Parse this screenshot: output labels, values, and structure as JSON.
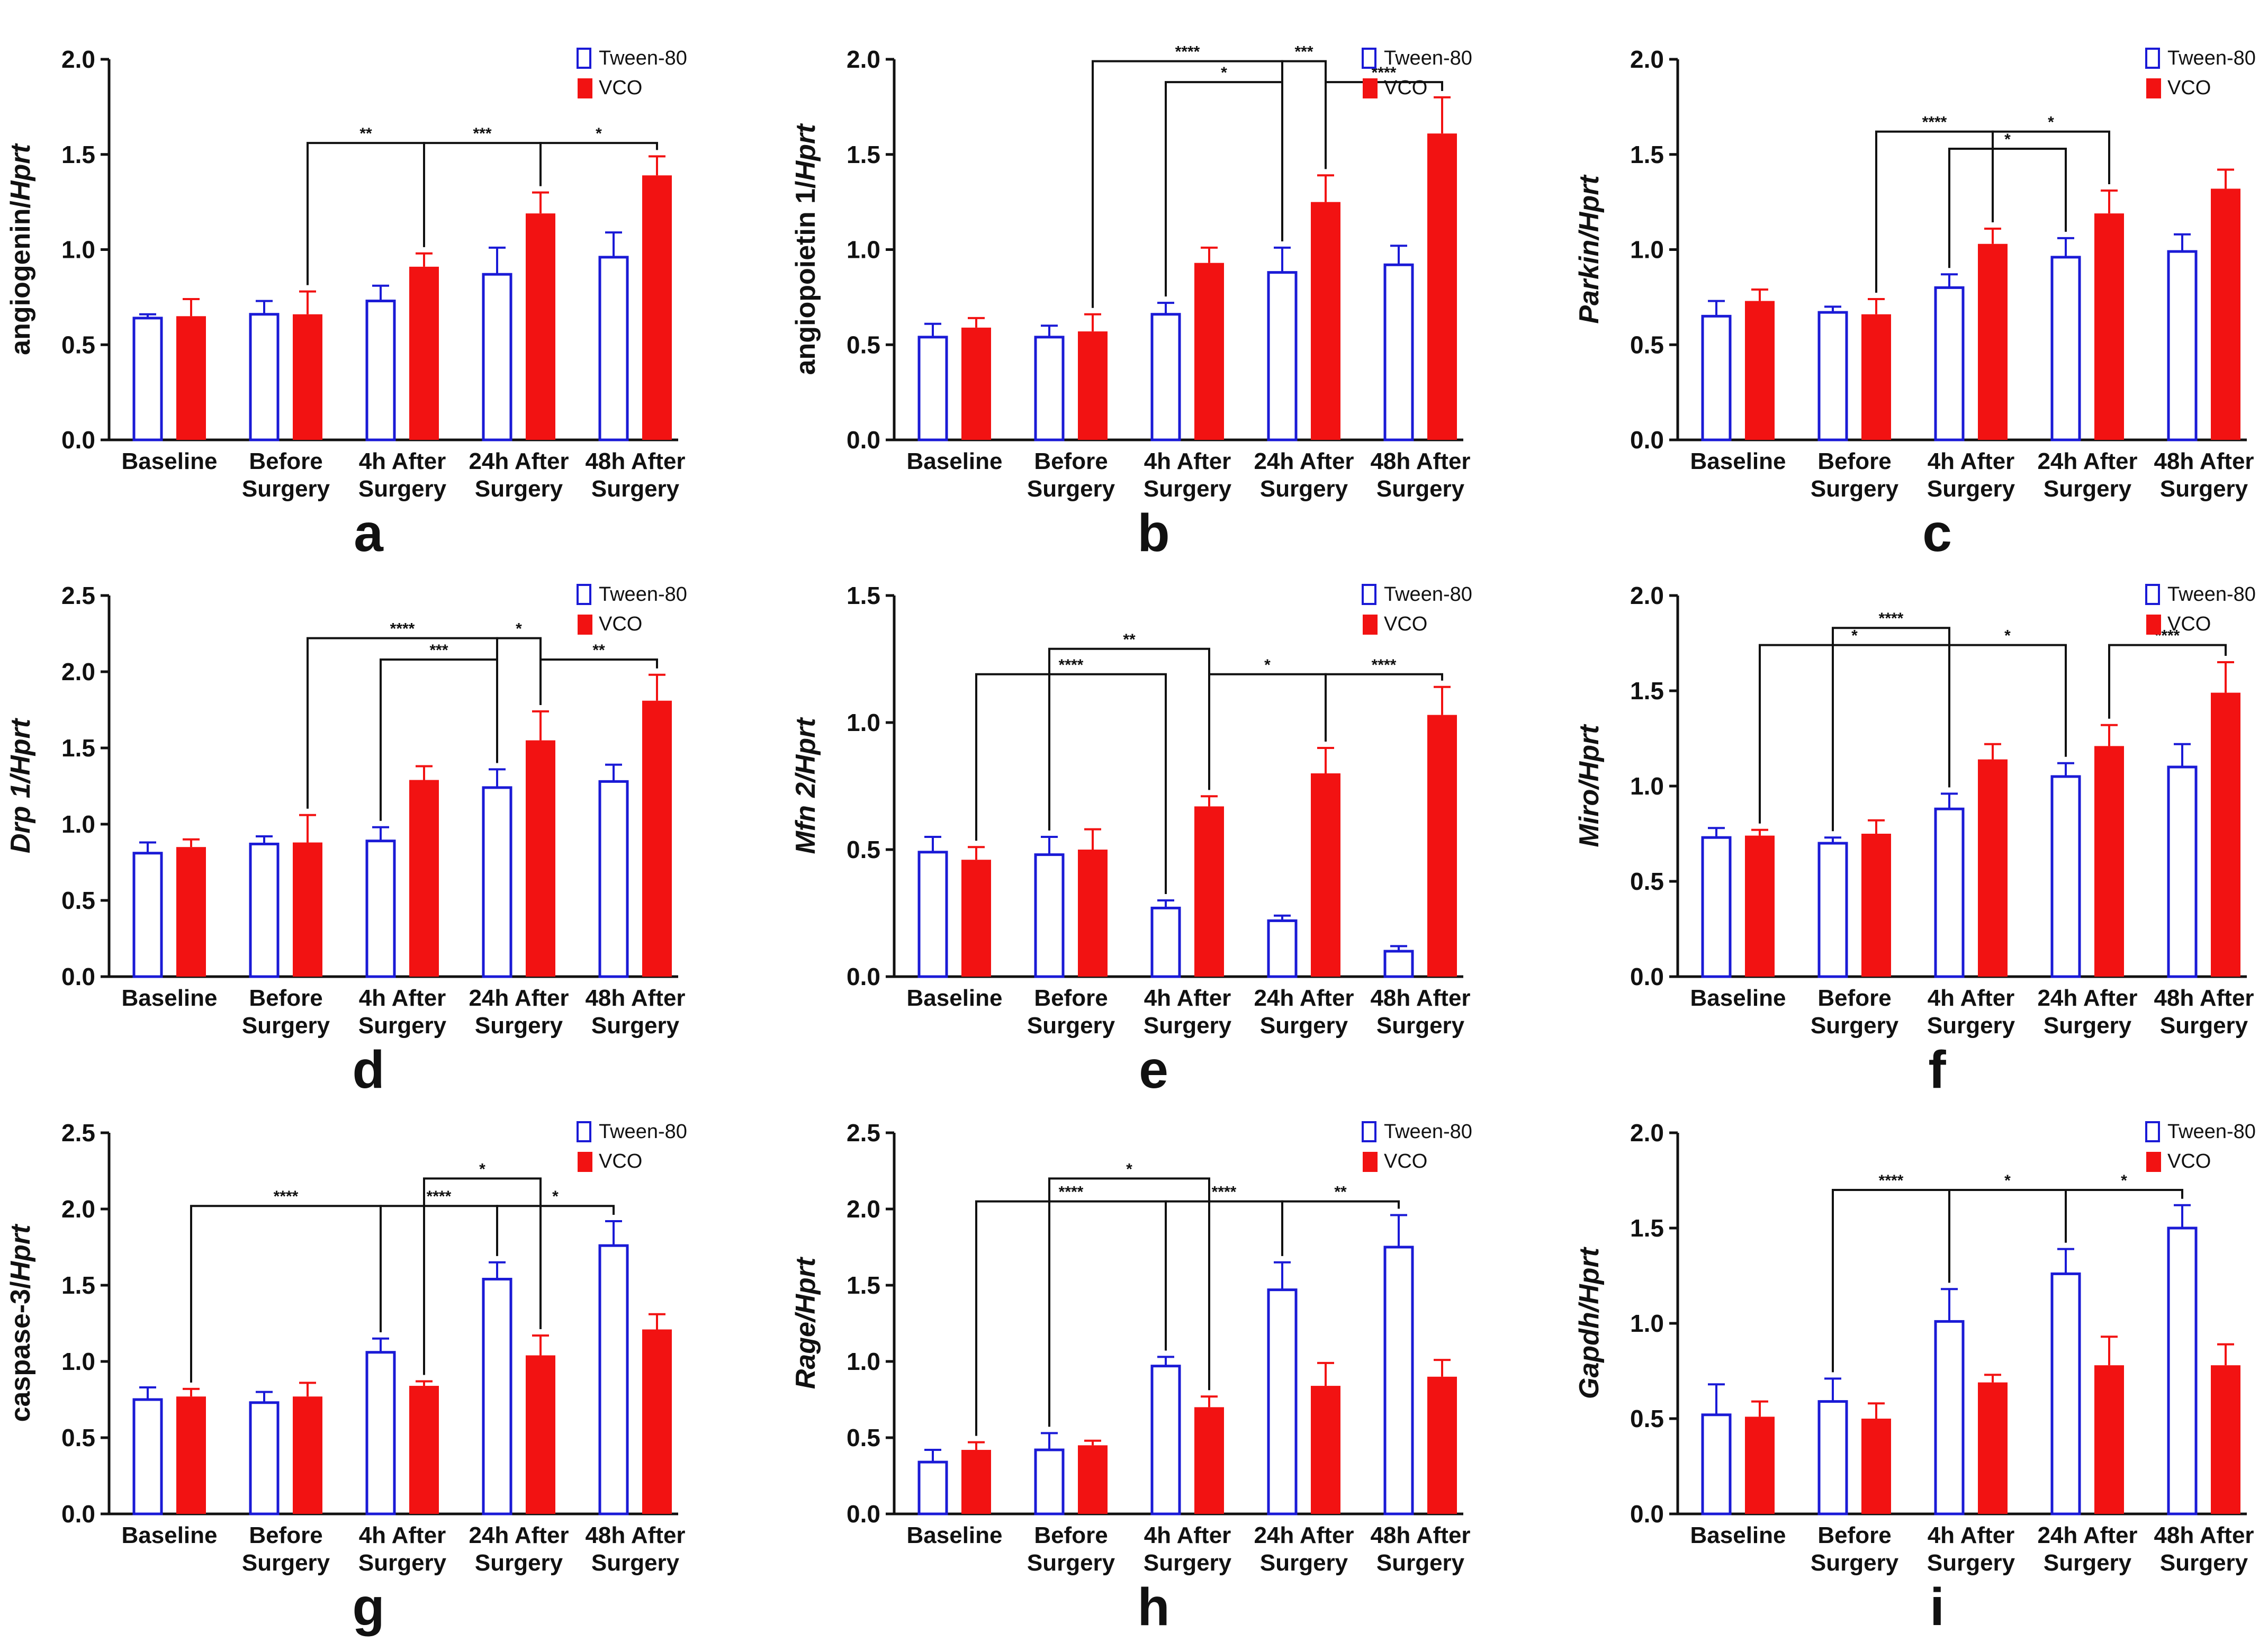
{
  "legend": {
    "tween_label": "Tween-80",
    "vco_label": "VCO"
  },
  "colors": {
    "tween": "#1a1ad6",
    "vco": "#f21212",
    "axis": "#111111"
  },
  "chart_data": [
    {
      "type": "bar",
      "panel": "a",
      "ylabel_plain": "angiogenin/",
      "ylabel_italic": "Hprt",
      "ylim": [
        0,
        2.0
      ],
      "yticks": [
        "0.0",
        "0.5",
        "1.0",
        "1.5",
        "2.0"
      ],
      "categories": [
        [
          "Baseline"
        ],
        [
          "Before",
          "Surgery"
        ],
        [
          "4h After",
          "Surgery"
        ],
        [
          "24h After",
          "Surgery"
        ],
        [
          "48h After",
          "Surgery"
        ]
      ],
      "series": [
        {
          "name": "Tween-80",
          "values": [
            0.64,
            0.66,
            0.73,
            0.87,
            0.96
          ],
          "errors": [
            0.02,
            0.07,
            0.08,
            0.14,
            0.13
          ]
        },
        {
          "name": "VCO",
          "values": [
            0.65,
            0.66,
            0.91,
            1.19,
            1.39
          ],
          "errors": [
            0.09,
            0.12,
            0.07,
            0.11,
            0.1
          ]
        }
      ],
      "comparisons": [
        {
          "from": [
            1,
            1
          ],
          "to": [
            2,
            1
          ],
          "y": 1.56,
          "label": "**"
        },
        {
          "from": [
            2,
            1
          ],
          "to": [
            3,
            1
          ],
          "y": 1.56,
          "label": "***"
        },
        {
          "from": [
            3,
            1
          ],
          "to": [
            4,
            1
          ],
          "y": 1.56,
          "label": "*"
        }
      ]
    },
    {
      "type": "bar",
      "panel": "b",
      "ylabel_plain": "angiopoietin 1/",
      "ylabel_italic": "Hprt",
      "ylim": [
        0,
        2.0
      ],
      "yticks": [
        "0.0",
        "0.5",
        "1.0",
        "1.5",
        "2.0"
      ],
      "categories": [
        [
          "Baseline"
        ],
        [
          "Before",
          "Surgery"
        ],
        [
          "4h After",
          "Surgery"
        ],
        [
          "24h After",
          "Surgery"
        ],
        [
          "48h After",
          "Surgery"
        ]
      ],
      "series": [
        {
          "name": "Tween-80",
          "values": [
            0.54,
            0.54,
            0.66,
            0.88,
            0.92
          ],
          "errors": [
            0.07,
            0.06,
            0.06,
            0.13,
            0.1
          ]
        },
        {
          "name": "VCO",
          "values": [
            0.59,
            0.57,
            0.93,
            1.25,
            1.61
          ],
          "errors": [
            0.05,
            0.09,
            0.08,
            0.14,
            0.19
          ]
        }
      ],
      "comparisons": [
        {
          "from": [
            1,
            1
          ],
          "to": [
            3,
            0
          ],
          "y": 1.99,
          "label": "****"
        },
        {
          "from": [
            3,
            0
          ],
          "to": [
            3,
            1
          ],
          "y": 1.99,
          "label": "***"
        },
        {
          "from": [
            2,
            0
          ],
          "to": [
            3,
            0
          ],
          "y": 1.88,
          "label": "*"
        },
        {
          "from": [
            3,
            1
          ],
          "to": [
            4,
            1
          ],
          "y": 1.88,
          "label": "****"
        }
      ]
    },
    {
      "type": "bar",
      "panel": "c",
      "ylabel_plain": "",
      "ylabel_italic": "Parkin/Hprt",
      "ylim": [
        0,
        2.0
      ],
      "yticks": [
        "0.0",
        "0.5",
        "1.0",
        "1.5",
        "2.0"
      ],
      "categories": [
        [
          "Baseline"
        ],
        [
          "Before",
          "Surgery"
        ],
        [
          "4h After",
          "Surgery"
        ],
        [
          "24h After",
          "Surgery"
        ],
        [
          "48h After",
          "Surgery"
        ]
      ],
      "series": [
        {
          "name": "Tween-80",
          "values": [
            0.65,
            0.67,
            0.8,
            0.96,
            0.99
          ],
          "errors": [
            0.08,
            0.03,
            0.07,
            0.1,
            0.09
          ]
        },
        {
          "name": "VCO",
          "values": [
            0.73,
            0.66,
            1.03,
            1.19,
            1.32
          ],
          "errors": [
            0.06,
            0.08,
            0.08,
            0.12,
            0.1
          ]
        }
      ],
      "comparisons": [
        {
          "from": [
            1,
            1
          ],
          "to": [
            2,
            1
          ],
          "y": 1.62,
          "label": "****"
        },
        {
          "from": [
            2,
            1
          ],
          "to": [
            3,
            1
          ],
          "y": 1.62,
          "label": "*"
        },
        {
          "from": [
            2,
            0
          ],
          "to": [
            3,
            0
          ],
          "y": 1.53,
          "label": "*"
        }
      ]
    },
    {
      "type": "bar",
      "panel": "d",
      "ylabel_plain": "",
      "ylabel_italic": "Drp 1/Hprt",
      "ylim": [
        0,
        2.5
      ],
      "yticks": [
        "0.0",
        "0.5",
        "1.0",
        "1.5",
        "2.0",
        "2.5"
      ],
      "categories": [
        [
          "Baseline"
        ],
        [
          "Before",
          "Surgery"
        ],
        [
          "4h After",
          "Surgery"
        ],
        [
          "24h After",
          "Surgery"
        ],
        [
          "48h After",
          "Surgery"
        ]
      ],
      "series": [
        {
          "name": "Tween-80",
          "values": [
            0.81,
            0.87,
            0.89,
            1.24,
            1.28
          ],
          "errors": [
            0.07,
            0.05,
            0.09,
            0.12,
            0.11
          ]
        },
        {
          "name": "VCO",
          "values": [
            0.85,
            0.88,
            1.29,
            1.55,
            1.81
          ],
          "errors": [
            0.05,
            0.18,
            0.09,
            0.19,
            0.17
          ]
        }
      ],
      "comparisons": [
        {
          "from": [
            1,
            1
          ],
          "to": [
            3,
            0
          ],
          "y": 2.22,
          "label": "****"
        },
        {
          "from": [
            3,
            0
          ],
          "to": [
            3,
            1
          ],
          "y": 2.22,
          "label": "*"
        },
        {
          "from": [
            2,
            0
          ],
          "to": [
            3,
            0
          ],
          "y": 2.08,
          "label": "***"
        },
        {
          "from": [
            3,
            1
          ],
          "to": [
            4,
            1
          ],
          "y": 2.08,
          "label": "**"
        }
      ]
    },
    {
      "type": "bar",
      "panel": "e",
      "ylabel_plain": "",
      "ylabel_italic": "Mfn 2/Hprt",
      "ylim": [
        0,
        1.5
      ],
      "yticks": [
        "0.0",
        "0.5",
        "1.0",
        "1.5"
      ],
      "categories": [
        [
          "Baseline"
        ],
        [
          "Before",
          "Surgery"
        ],
        [
          "4h After",
          "Surgery"
        ],
        [
          "24h After",
          "Surgery"
        ],
        [
          "48h After",
          "Surgery"
        ]
      ],
      "series": [
        {
          "name": "Tween-80",
          "values": [
            0.49,
            0.48,
            0.27,
            0.22,
            0.1
          ],
          "errors": [
            0.06,
            0.07,
            0.03,
            0.02,
            0.02
          ]
        },
        {
          "name": "VCO",
          "values": [
            0.46,
            0.5,
            0.67,
            0.8,
            1.03
          ],
          "errors": [
            0.05,
            0.08,
            0.04,
            0.1,
            0.11
          ]
        }
      ],
      "comparisons": [
        {
          "from": [
            1,
            0
          ],
          "to": [
            2,
            1
          ],
          "y": 1.29,
          "label": "**"
        },
        {
          "from": [
            0,
            1
          ],
          "to": [
            2,
            0
          ],
          "y": 1.19,
          "label": "****"
        },
        {
          "from": [
            2,
            1
          ],
          "to": [
            3,
            1
          ],
          "y": 1.19,
          "label": "*"
        },
        {
          "from": [
            3,
            1
          ],
          "to": [
            4,
            1
          ],
          "y": 1.19,
          "label": "****"
        }
      ]
    },
    {
      "type": "bar",
      "panel": "f",
      "ylabel_plain": "",
      "ylabel_italic": "Miro/Hprt",
      "ylim": [
        0,
        2.0
      ],
      "yticks": [
        "0.0",
        "0.5",
        "1.0",
        "1.5",
        "2.0"
      ],
      "categories": [
        [
          "Baseline"
        ],
        [
          "Before",
          "Surgery"
        ],
        [
          "4h After",
          "Surgery"
        ],
        [
          "24h After",
          "Surgery"
        ],
        [
          "48h After",
          "Surgery"
        ]
      ],
      "series": [
        {
          "name": "Tween-80",
          "values": [
            0.73,
            0.7,
            0.88,
            1.05,
            1.1
          ],
          "errors": [
            0.05,
            0.03,
            0.08,
            0.07,
            0.12
          ]
        },
        {
          "name": "VCO",
          "values": [
            0.74,
            0.75,
            1.14,
            1.21,
            1.49
          ],
          "errors": [
            0.03,
            0.07,
            0.08,
            0.11,
            0.16
          ]
        }
      ],
      "comparisons": [
        {
          "from": [
            1,
            0
          ],
          "to": [
            2,
            0
          ],
          "y": 1.83,
          "label": "****"
        },
        {
          "from": [
            0,
            1
          ],
          "to": [
            2,
            0
          ],
          "y": 1.74,
          "label": "*"
        },
        {
          "from": [
            2,
            0
          ],
          "to": [
            3,
            0
          ],
          "y": 1.74,
          "label": "*"
        },
        {
          "from": [
            3,
            1
          ],
          "to": [
            4,
            1
          ],
          "y": 1.74,
          "label": "****"
        }
      ]
    },
    {
      "type": "bar",
      "panel": "g",
      "ylabel_plain": "caspase-3/",
      "ylabel_italic": "Hprt",
      "ylim": [
        0,
        2.5
      ],
      "yticks": [
        "0.0",
        "0.5",
        "1.0",
        "1.5",
        "2.0",
        "2.5"
      ],
      "categories": [
        [
          "Baseline"
        ],
        [
          "Before",
          "Surgery"
        ],
        [
          "4h After",
          "Surgery"
        ],
        [
          "24h After",
          "Surgery"
        ],
        [
          "48h After",
          "Surgery"
        ]
      ],
      "series": [
        {
          "name": "Tween-80",
          "values": [
            0.75,
            0.73,
            1.06,
            1.54,
            1.76
          ],
          "errors": [
            0.08,
            0.07,
            0.09,
            0.11,
            0.16
          ]
        },
        {
          "name": "VCO",
          "values": [
            0.77,
            0.77,
            0.84,
            1.04,
            1.21
          ],
          "errors": [
            0.05,
            0.09,
            0.03,
            0.13,
            0.1
          ]
        }
      ],
      "comparisons": [
        {
          "from": [
            2,
            1
          ],
          "to": [
            3,
            1
          ],
          "y": 2.2,
          "label": "*"
        },
        {
          "from": [
            0,
            1
          ],
          "to": [
            2,
            0
          ],
          "y": 2.02,
          "label": "****"
        },
        {
          "from": [
            2,
            0
          ],
          "to": [
            3,
            0
          ],
          "y": 2.02,
          "label": "****"
        },
        {
          "from": [
            3,
            0
          ],
          "to": [
            4,
            0
          ],
          "y": 2.02,
          "label": "*"
        }
      ]
    },
    {
      "type": "bar",
      "panel": "h",
      "ylabel_plain": "",
      "ylabel_italic": "Rage/Hprt",
      "ylim": [
        0,
        2.5
      ],
      "yticks": [
        "0.0",
        "0.5",
        "1.0",
        "1.5",
        "2.0",
        "2.5"
      ],
      "categories": [
        [
          "Baseline"
        ],
        [
          "Before",
          "Surgery"
        ],
        [
          "4h After",
          "Surgery"
        ],
        [
          "24h After",
          "Surgery"
        ],
        [
          "48h After",
          "Surgery"
        ]
      ],
      "series": [
        {
          "name": "Tween-80",
          "values": [
            0.34,
            0.42,
            0.97,
            1.47,
            1.75
          ],
          "errors": [
            0.08,
            0.11,
            0.06,
            0.18,
            0.21
          ]
        },
        {
          "name": "VCO",
          "values": [
            0.42,
            0.45,
            0.7,
            0.84,
            0.9
          ],
          "errors": [
            0.05,
            0.03,
            0.07,
            0.15,
            0.11
          ]
        }
      ],
      "comparisons": [
        {
          "from": [
            1,
            0
          ],
          "to": [
            2,
            1
          ],
          "y": 2.2,
          "label": "*"
        },
        {
          "from": [
            0,
            1
          ],
          "to": [
            2,
            0
          ],
          "y": 2.05,
          "label": "****"
        },
        {
          "from": [
            2,
            0
          ],
          "to": [
            3,
            0
          ],
          "y": 2.05,
          "label": "****"
        },
        {
          "from": [
            3,
            0
          ],
          "to": [
            4,
            0
          ],
          "y": 2.05,
          "label": "**"
        }
      ]
    },
    {
      "type": "bar",
      "panel": "i",
      "ylabel_plain": "",
      "ylabel_italic": "Gapdh/Hprt",
      "ylim": [
        0,
        2.0
      ],
      "yticks": [
        "0.0",
        "0.5",
        "1.0",
        "1.5",
        "2.0"
      ],
      "categories": [
        [
          "Baseline"
        ],
        [
          "Before",
          "Surgery"
        ],
        [
          "4h After",
          "Surgery"
        ],
        [
          "24h After",
          "Surgery"
        ],
        [
          "48h After",
          "Surgery"
        ]
      ],
      "series": [
        {
          "name": "Tween-80",
          "values": [
            0.52,
            0.59,
            1.01,
            1.26,
            1.5
          ],
          "errors": [
            0.16,
            0.12,
            0.17,
            0.13,
            0.12
          ]
        },
        {
          "name": "VCO",
          "values": [
            0.51,
            0.5,
            0.69,
            0.78,
            0.78
          ],
          "errors": [
            0.08,
            0.08,
            0.04,
            0.15,
            0.11
          ]
        }
      ],
      "comparisons": [
        {
          "from": [
            1,
            0
          ],
          "to": [
            2,
            0
          ],
          "y": 1.7,
          "label": "****"
        },
        {
          "from": [
            2,
            0
          ],
          "to": [
            3,
            0
          ],
          "y": 1.7,
          "label": "*"
        },
        {
          "from": [
            3,
            0
          ],
          "to": [
            4,
            0
          ],
          "y": 1.7,
          "label": "*"
        }
      ]
    }
  ]
}
